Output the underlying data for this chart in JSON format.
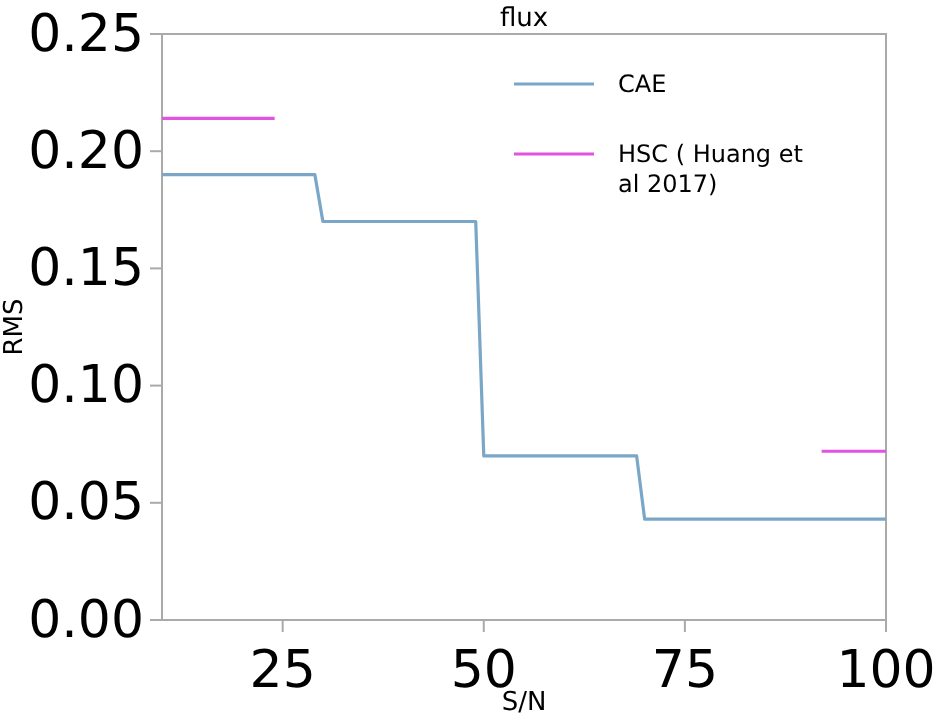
{
  "chart_data": {
    "type": "line",
    "title": "flux",
    "xlabel": "S/N",
    "ylabel": "RMS",
    "xlim": [
      10,
      100
    ],
    "xticks": [
      25,
      50,
      75,
      100
    ],
    "ylim": [
      0,
      0.25
    ],
    "yticks": [
      {
        "value": 0,
        "label": "0.00"
      },
      {
        "value": 0.05,
        "label": "0.05"
      },
      {
        "value": 0.1,
        "label": "0.10"
      },
      {
        "value": 0.15,
        "label": "0.15"
      },
      {
        "value": 0.2,
        "label": "0.20"
      },
      {
        "value": 0.25,
        "label": "0.25"
      }
    ],
    "grid": false,
    "legend": "top right",
    "marker": "none",
    "line_style": "solid",
    "series": [
      {
        "name": "CAE",
        "color": "#7aa6c8",
        "x": [
          10,
          29,
          30,
          49,
          50,
          69,
          70,
          100
        ],
        "values": [
          0.19,
          0.19,
          0.17,
          0.17,
          0.07,
          0.07,
          0.043,
          0.043
        ]
      },
      {
        "name": "HSC ( Huang et al 2017)",
        "color": "#e054e0",
        "x": [
          10,
          24,
          null,
          92,
          100
        ],
        "values": [
          0.214,
          0.214,
          null,
          0.072,
          0.072
        ]
      }
    ]
  }
}
